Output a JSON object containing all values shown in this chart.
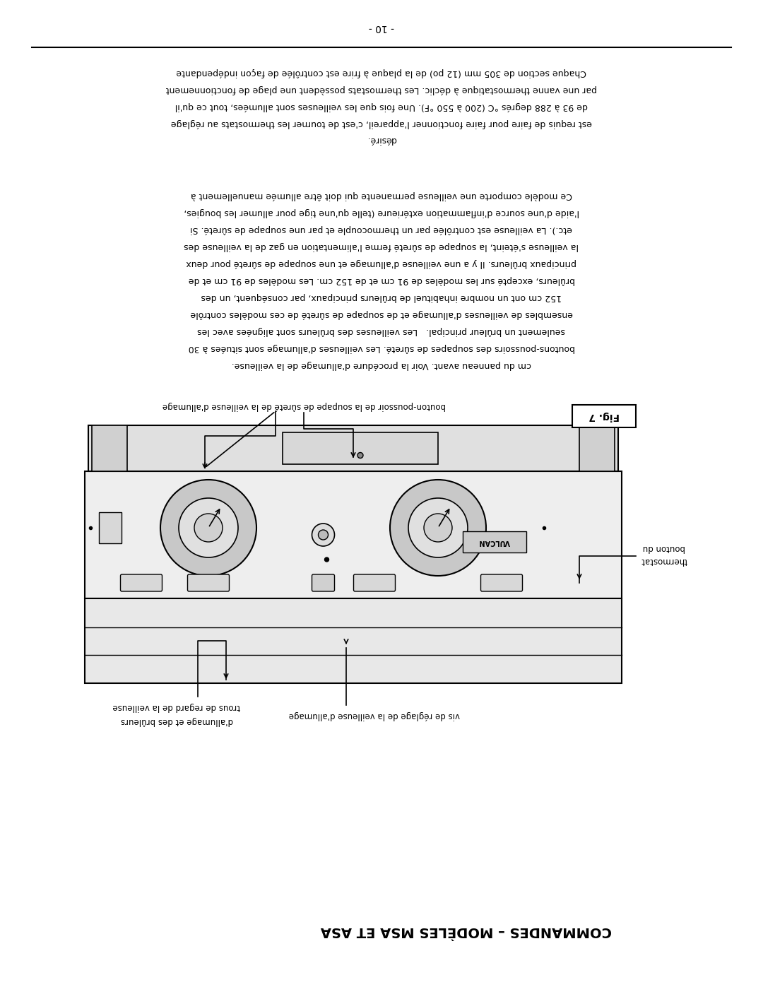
{
  "page_number": "- 10 -",
  "background_color": "#ffffff",
  "text_color": "#000000",
  "line_color": "#000000",
  "paragraph1_lines": [
    "Chaque section de 305 mm (12 po) de la plaque à frire est contrôlée de façon indépendante",
    "par une vanne thermostatique à déclic. Les thermostats possèdent une plage de fonctionnement",
    "de 93 à 288 degrés °C (200 à 550 °F). Une fois que les veilleuses sont allumées, tout ce qu'il",
    "est requis de faire pour faire fonctionner l'appareil, c'est de tourner les thermostats au réglage",
    "désiré."
  ],
  "paragraph2_lines": [
    "Ce modèle comporte une veilleuse permanente qui doit être allumée manuellement à",
    "l'aide d'une source d'inflammation extérieure (telle qu'une tige pour allumer les bougies,",
    "etc.). La veilleuse est contrôlée par un thermocouple et par une soupape de sûreté. Si",
    "la veilleuse s'éteint, la soupape de sûreté ferme l'alimentation en gaz de la veilleuse des",
    "principaux brûleurs. Il y a une veilleuse d'allumage et une soupape de sûreté pour deux",
    "brûleurs, excepté sur les modèles de 91 cm et de 152 cm. Les modèles de 91 cm et de",
    "152 cm ont un nombre inhabituel de brûleurs principaux, par conséquent, un des",
    "ensembles de veilleuses d'allumage et de soupape de sûreté de ces modèles contrôle",
    "seulement un brûleur principal.   Les veilleuses des brûleurs sont alignées avec les",
    "boutons-poussoirs des soupapes de sûreté. Les veilleuses d'allumage sont situées à 30",
    "cm du panneau avant. Voir la procédure d'allumage de la veilleuse."
  ],
  "fig_label": "Fig. 7",
  "annotation_top": "bouton-poussoir de la soupape de sûreté de la veilleuse d'allumage",
  "annotation_right1": "bouton du",
  "annotation_right2": "thermostat",
  "annotation_bottom_left1": "trous de regard de la veilleuse",
  "annotation_bottom_left2": "d'allumage et des brûleurs",
  "annotation_bottom_mid": "vis de réglage de la veilleuse d'allumage",
  "footer_title": "COMMANDES – MODÈLES MSA ET ASA"
}
